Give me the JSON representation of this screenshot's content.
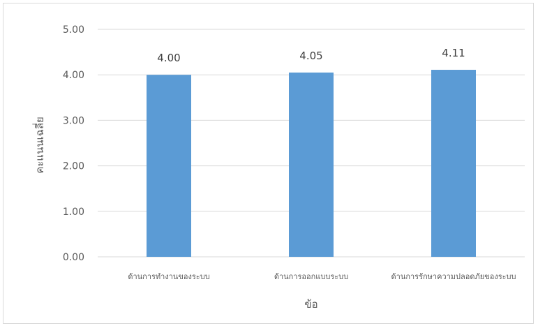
{
  "chart_data": {
    "type": "bar",
    "categories": [
      "ด้านการทำงานของระบบ",
      "ด้านการออกแบบระบบ",
      "ด้านการรักษาความปลอดภัยของระบบ"
    ],
    "values": [
      4.0,
      4.05,
      4.11
    ],
    "data_labels": [
      "4.00",
      "4.05",
      "4.11"
    ],
    "title": "",
    "xlabel": "ข้อ",
    "ylabel": "คะแนนเฉลี่ย",
    "ylim": [
      0,
      5
    ],
    "y_ticks": [
      "0.00",
      "1.00",
      "2.00",
      "3.00",
      "4.00",
      "5.00"
    ],
    "grid": true,
    "legend": "none",
    "bar_color": "#5b9bd5",
    "grid_color": "#d9d9d9"
  }
}
